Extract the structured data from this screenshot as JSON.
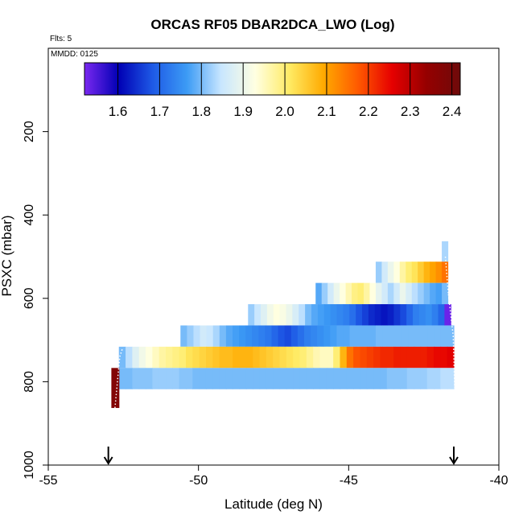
{
  "chart_data": {
    "type": "heatmap",
    "title": "ORCAS RF05 DBAR2DCA_LWO (Log)",
    "corner_labels": {
      "flights": "Flts: 5",
      "date": "MMDD: 0125"
    },
    "xlabel": "Latitude (deg N)",
    "ylabel": "PSXC (mbar)",
    "xlim": [
      -55,
      -40
    ],
    "ylim": [
      1000,
      0
    ],
    "x_ticks": [
      -55,
      -50,
      -45,
      -40
    ],
    "y_ticks": [
      200,
      400,
      600,
      800,
      1000
    ],
    "colorbar": {
      "min": 1.52,
      "max": 2.42,
      "ticks": [
        1.6,
        1.7,
        1.8,
        1.9,
        2.0,
        2.1,
        2.2,
        2.3,
        2.4
      ],
      "tick_labels": [
        "1.6",
        "1.7",
        "1.8",
        "1.9",
        "2.0",
        "2.1",
        "2.2",
        "2.3",
        "2.4"
      ],
      "stops": [
        "#7a28f0",
        "#0000b4",
        "#1e5ae6",
        "#3c9bf5",
        "#c8e6ff",
        "#ffffe1",
        "#ffeb64",
        "#ffaa00",
        "#ff5a00",
        "#e60000",
        "#960000",
        "#6e0a0a"
      ]
    },
    "arrows_at_latitude": [
      -53.0,
      -41.5
    ],
    "bands": [
      {
        "p_top": 463,
        "p_bottom": 512,
        "lat_start": -41.9,
        "lat_end": -41.7,
        "values": [
          1.83
        ]
      },
      {
        "p_top": 512,
        "p_bottom": 563,
        "lat_start": -44.1,
        "lat_end": -41.7,
        "values": [
          1.82,
          1.86,
          1.9,
          1.93,
          1.97,
          2.0,
          2.02,
          2.05,
          2.08,
          2.1,
          2.12,
          2.15
        ]
      },
      {
        "p_top": 563,
        "p_bottom": 614,
        "lat_start": -46.1,
        "lat_end": -41.7,
        "values": [
          1.78,
          1.82,
          1.86,
          1.9,
          1.93,
          1.96,
          1.99,
          2.0,
          1.97,
          1.93,
          1.89,
          1.86,
          1.83,
          1.86,
          1.9,
          1.87,
          1.84,
          1.82,
          1.8,
          1.78,
          1.77,
          1.8
        ]
      },
      {
        "p_top": 614,
        "p_bottom": 665,
        "lat_start": -48.35,
        "lat_end": -41.6,
        "values": [
          1.82,
          1.85,
          1.88,
          1.91,
          1.93,
          1.92,
          1.9,
          1.87,
          1.84,
          1.8,
          1.78,
          1.77,
          1.76,
          1.75,
          1.74,
          1.73,
          1.71,
          1.68,
          1.66,
          1.64,
          1.63,
          1.62,
          1.63,
          1.65,
          1.67,
          1.7,
          1.73,
          1.74,
          1.75,
          1.73,
          1.7,
          1.53
        ]
      },
      {
        "p_top": 665,
        "p_bottom": 716,
        "lat_start": -50.6,
        "lat_end": -41.5,
        "values": [
          1.8,
          1.82,
          1.84,
          1.86,
          1.85,
          1.83,
          1.8,
          1.78,
          1.77,
          1.76,
          1.75,
          1.74,
          1.73,
          1.72,
          1.7,
          1.68,
          1.67,
          1.69,
          1.71,
          1.73,
          1.74,
          1.75,
          1.76,
          1.77,
          1.78,
          1.78,
          1.79,
          1.79,
          1.79,
          1.79,
          1.8,
          1.8,
          1.8,
          1.8,
          1.8,
          1.8,
          1.8,
          1.8,
          1.8,
          1.8,
          1.8,
          1.8
        ]
      },
      {
        "p_top": 716,
        "p_bottom": 767,
        "lat_start": -52.65,
        "lat_end": -41.5,
        "values": [
          1.8,
          1.84,
          1.88,
          1.91,
          1.93,
          1.95,
          1.97,
          1.98,
          1.99,
          2.0,
          2.02,
          2.03,
          2.04,
          2.05,
          2.06,
          2.07,
          2.07,
          2.08,
          2.08,
          2.08,
          2.07,
          2.06,
          2.05,
          2.04,
          2.03,
          2.02,
          2.01,
          2.0,
          1.98,
          1.96,
          1.95,
          1.95,
          2.0,
          2.08,
          2.15,
          2.18,
          2.19,
          2.2,
          2.21,
          2.22,
          2.22,
          2.23,
          2.23,
          2.23,
          2.23,
          2.23,
          2.24,
          2.25,
          2.25,
          2.26
        ]
      },
      {
        "p_top": 767,
        "p_bottom": 818,
        "lat_start": -52.65,
        "lat_end": -41.5,
        "values": [
          1.8,
          1.8,
          1.81,
          1.81,
          1.81,
          1.82,
          1.82,
          1.82,
          1.82,
          1.81,
          1.81,
          1.8,
          1.8,
          1.8,
          1.8,
          1.8,
          1.8,
          1.8,
          1.8,
          1.8,
          1.8,
          1.8,
          1.8,
          1.8,
          1.8,
          1.8,
          1.8,
          1.8,
          1.8,
          1.8,
          1.8,
          1.8,
          1.8,
          1.8,
          1.8,
          1.8,
          1.8,
          1.8,
          1.8,
          1.8,
          1.81,
          1.81,
          1.81,
          1.82,
          1.82,
          1.82,
          1.83,
          1.83,
          1.84,
          1.84
        ]
      },
      {
        "p_top": 767,
        "p_bottom": 863,
        "lat_start": -52.9,
        "lat_end": -52.65,
        "values": [
          2.38
        ]
      }
    ],
    "dotted_trace": [
      {
        "lat": -52.78,
        "p": 863
      },
      {
        "lat": -52.62,
        "p": 740
      },
      {
        "lat": -52.52,
        "p": 718
      },
      {
        "lat": -41.78,
        "p": 500
      },
      {
        "lat": -41.68,
        "p": 590
      },
      {
        "lat": -41.52,
        "p": 690
      },
      {
        "lat": -41.47,
        "p": 815
      }
    ]
  }
}
